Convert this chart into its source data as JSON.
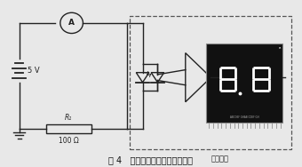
{
  "bg_color": "#e8e8e8",
  "fig_bg": "#e8e8e8",
  "title": "图 4   光功率和电流关系特性测试",
  "title_fontsize": 7.5,
  "label_guanggonglv": "光功率计",
  "circuit_color": "#222222",
  "dashed_box_color": "#555555",
  "battery_voltage": "5 V",
  "resistor_label": "R₁",
  "resistor_value": "100 Ω",
  "disp_face": "#111111",
  "disp_edge": "#888888",
  "seg_color": "#ffffff",
  "pin_color": "#888888"
}
